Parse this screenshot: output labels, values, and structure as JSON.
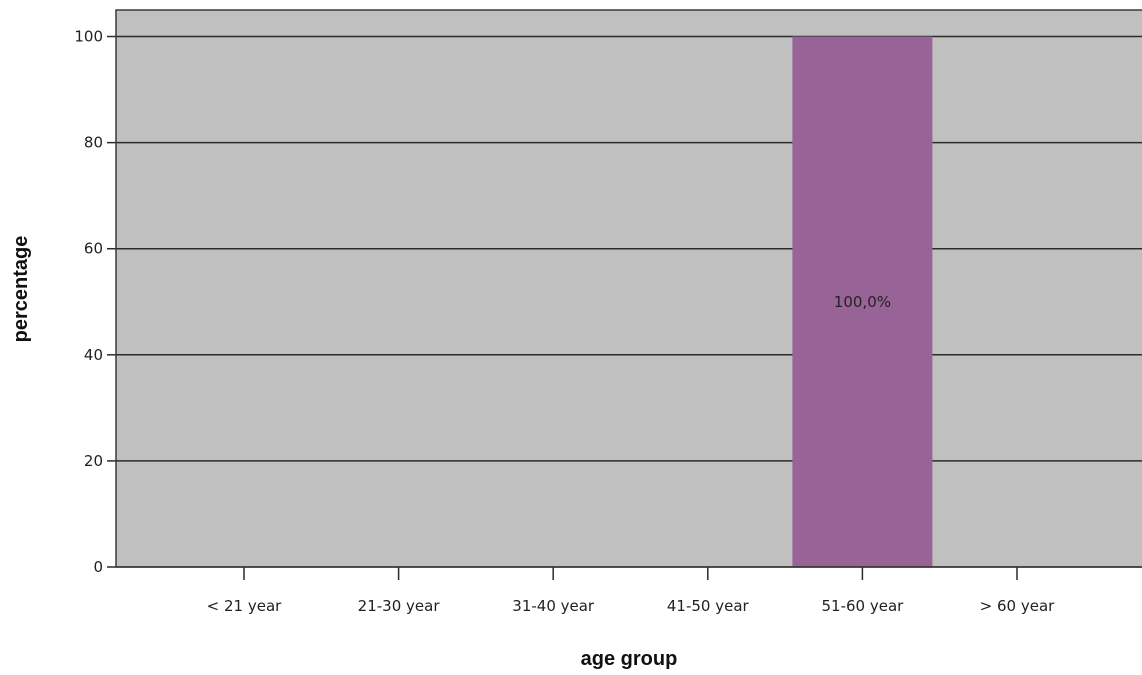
{
  "chart_data": {
    "type": "bar",
    "categories": [
      "< 21 year",
      "21-30 year",
      "31-40 year",
      "41-50 year",
      "51-60 year",
      "> 60 year"
    ],
    "values": [
      0,
      0,
      0,
      0,
      100,
      0
    ],
    "data_labels": [
      "",
      "",
      "",
      "",
      "100,0%",
      ""
    ],
    "title": "",
    "xlabel": "age group",
    "ylabel": "percentage",
    "ylim": [
      0,
      105
    ],
    "yticks": [
      0,
      20,
      40,
      60,
      80,
      100
    ],
    "ytick_labels": [
      "0",
      "20",
      "40",
      "60",
      "80",
      "100"
    ],
    "grid": true,
    "bar_color": "#986498",
    "plot_background": "#c0c0c0"
  }
}
